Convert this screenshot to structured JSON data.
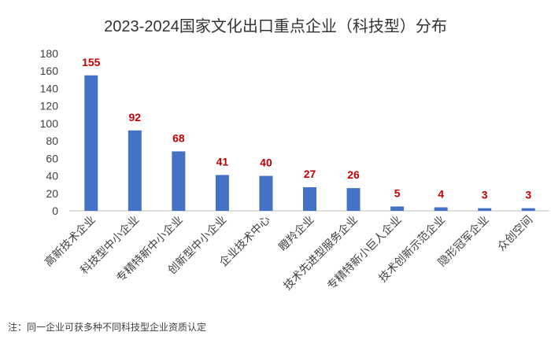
{
  "chart_data": {
    "type": "bar",
    "title": "2023-2024国家文化出口重点企业（科技型）分布",
    "categories": [
      "高新技术企业",
      "科技型中小企业",
      "专精特新中小企业",
      "创新型中小企业",
      "企业技术中心",
      "瞪羚企业",
      "技术先进型服务企业",
      "专精特新小巨人企业",
      "技术创新示范企业",
      "隐形冠军企业",
      "众创空间"
    ],
    "values": [
      155,
      92,
      68,
      41,
      40,
      27,
      26,
      5,
      4,
      3,
      3
    ],
    "color": "#4472c4",
    "label_color": "#c00000",
    "ylim": [
      0,
      180
    ],
    "yticks": [
      0,
      20,
      40,
      60,
      80,
      100,
      120,
      140,
      160,
      180
    ],
    "grid": false,
    "footnote": "注：同一企业可获多种不同科技型企业资质认定"
  }
}
